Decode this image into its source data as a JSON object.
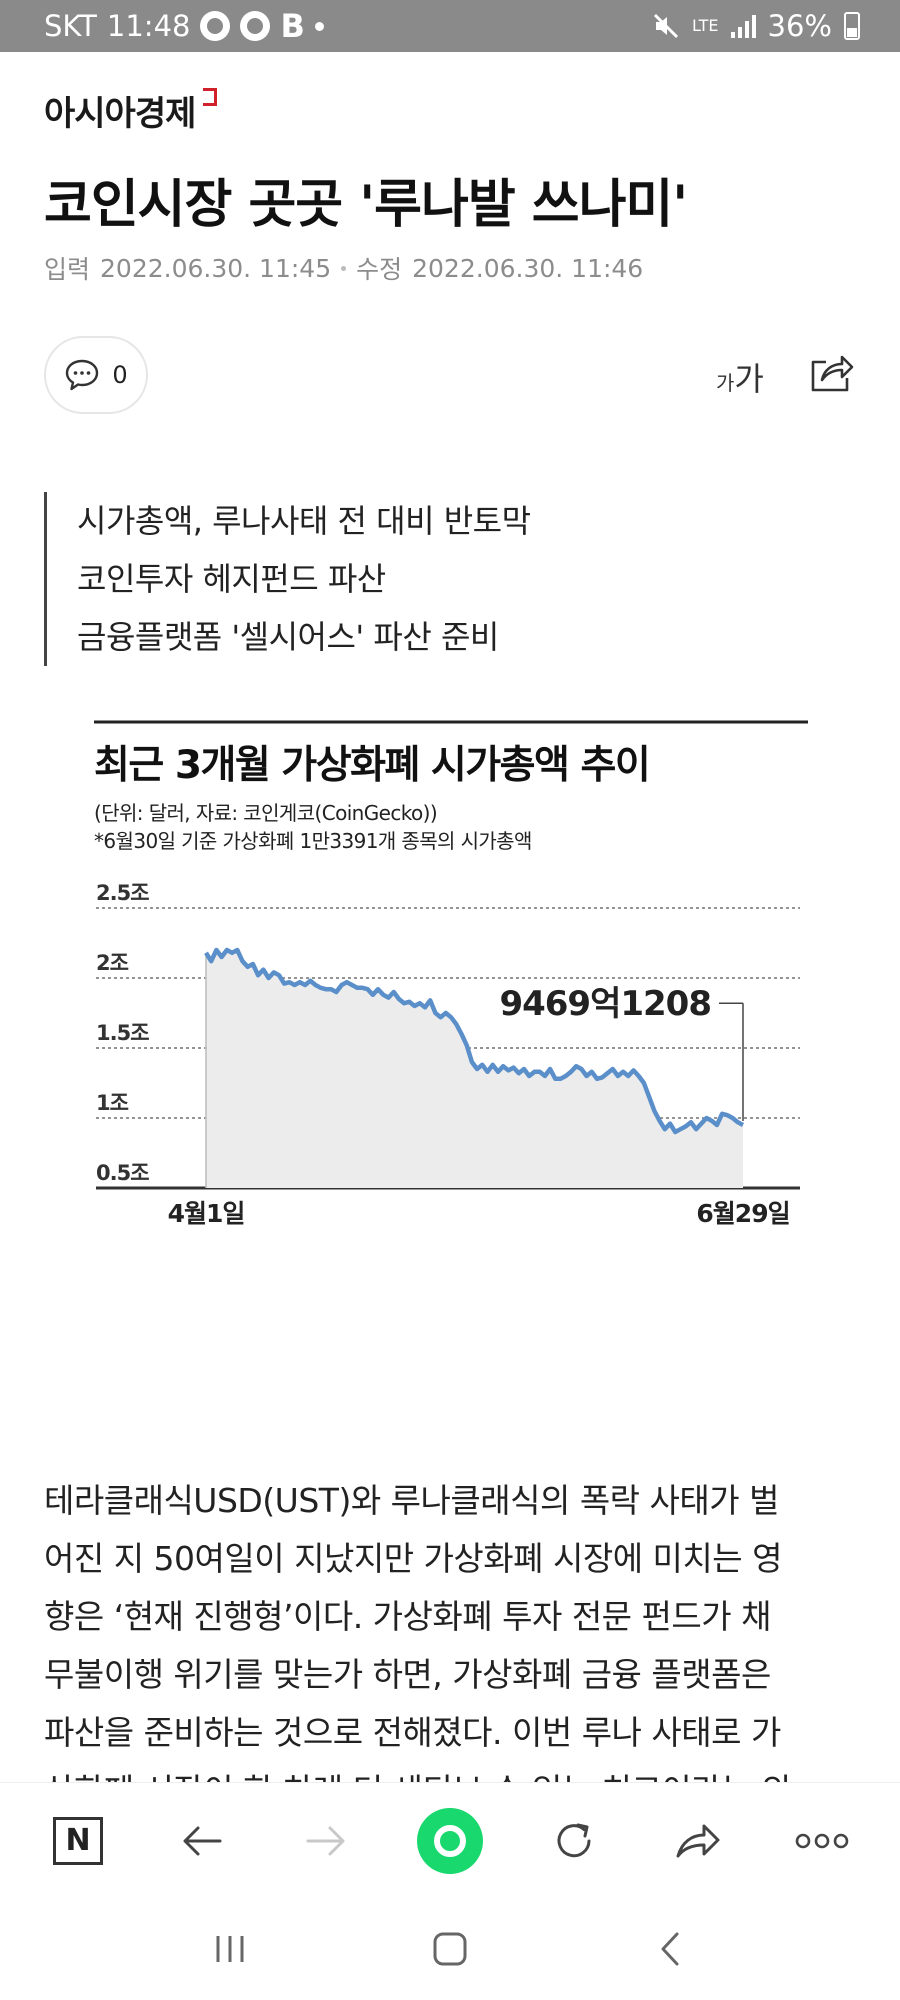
{
  "status": {
    "carrier": "SKT",
    "time": "11:48",
    "letter_icon": "B",
    "network": "LTE",
    "battery": "36%"
  },
  "article": {
    "brand": "아시아경제",
    "headline": "코인시장 곳곳 '루나발 쓰나미'",
    "input_label": "입력",
    "input_time": "2022.06.30. 11:45",
    "edit_label": "수정",
    "edit_time": "2022.06.30. 11:46",
    "comment_count": "0",
    "font_small": "가",
    "font_big": "가",
    "summary": [
      "시가총액, 루나사태 전 대비 반토막",
      "코인투자 헤지펀드 파산",
      "금융플랫폼 '셀시어스' 파산 준비"
    ],
    "body": [
      "테라클래식USD(UST)와 루나클래식의 폭락 사태가 벌",
      "어진 지 50여일이 지났지만 가상화폐 시장에 미치는 영",
      "향은 ‘현재 진행형’이다. 가상화폐 투자 전문 펀드가 채",
      "무불이행 위기를 맞는가 하면, 가상화폐 금융 플랫폼은",
      "파산을 준비하는 것으로 전해졌다. 이번 루나 사태로 가",
      "상화폐 시장이 한 차례 더 세티브 수 있는 치고이라는 의"
    ]
  },
  "chart_data": {
    "type": "area",
    "title": "최근 3개월 가상화폐 시가총액 추이",
    "subtitle": "(단위: 달러, 자료: 코인게코(CoinGecko))",
    "note": "*6월30일 기준 가상화폐 1만3391개 종목의 시가총액",
    "y_ticks": [
      "2.5조",
      "2조",
      "1.5조",
      "1조",
      "0.5조"
    ],
    "y_tick_values": [
      2.5,
      2.0,
      1.5,
      1.0,
      0.5
    ],
    "ylim": [
      0.5,
      2.5
    ],
    "x_start_label": "4월1일",
    "x_end_label": "6월29일",
    "annotation": "9469억1208",
    "grid": true,
    "series": [
      {
        "values": [
          2.18,
          2.12,
          2.2,
          2.15,
          2.2,
          2.18,
          2.2,
          2.12,
          2.08,
          2.1,
          2.02,
          2.06,
          2.0,
          2.04,
          2.02,
          1.96,
          1.97,
          1.95,
          1.97,
          1.95,
          1.98,
          1.95,
          1.93,
          1.92,
          1.92,
          1.9,
          1.95,
          1.97,
          1.95,
          1.93,
          1.93,
          1.92,
          1.88,
          1.92,
          1.88,
          1.86,
          1.9,
          1.85,
          1.82,
          1.83,
          1.8,
          1.82,
          1.79,
          1.84,
          1.75,
          1.72,
          1.75,
          1.72,
          1.67,
          1.6,
          1.52,
          1.4,
          1.35,
          1.38,
          1.33,
          1.38,
          1.33,
          1.37,
          1.34,
          1.36,
          1.32,
          1.35,
          1.3,
          1.33,
          1.33,
          1.3,
          1.35,
          1.28,
          1.28,
          1.3,
          1.33,
          1.37,
          1.35,
          1.3,
          1.33,
          1.28,
          1.29,
          1.32,
          1.35,
          1.3,
          1.33,
          1.3,
          1.34,
          1.3,
          1.25,
          1.15,
          1.05,
          0.98,
          0.92,
          0.96,
          0.9,
          0.92,
          0.94,
          0.97,
          0.92,
          0.96,
          1.0,
          0.98,
          0.95,
          1.03,
          1.02,
          1.0,
          0.97,
          0.95
        ]
      }
    ]
  }
}
